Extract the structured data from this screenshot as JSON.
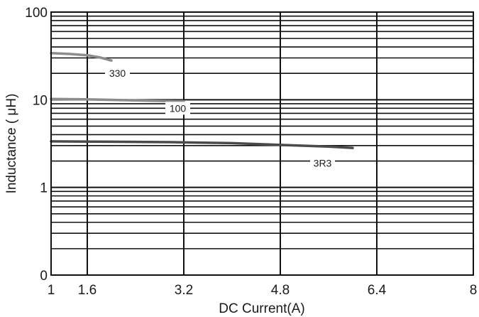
{
  "chart_data": {
    "type": "line",
    "title": "",
    "xlabel": "DC Current(A)",
    "ylabel": "Inductance ( μH)",
    "x_ticks": [
      1,
      1.6,
      3.2,
      4.8,
      6.4,
      8
    ],
    "y_ticks": [
      {
        "value": 100,
        "label": "100"
      },
      {
        "value": 10,
        "label": "10"
      },
      {
        "value": 1,
        "label": "1"
      },
      {
        "value": 0.1,
        "label": "0"
      }
    ],
    "xlim": [
      1,
      8
    ],
    "ylim": [
      0.1,
      100
    ],
    "y_scale": "log",
    "grid": true,
    "legend": "none",
    "series": [
      {
        "name": "330",
        "color": "#8c8c8c",
        "x": [
          1.0,
          1.3,
          1.6,
          1.8,
          2.0
        ],
        "y": [
          34,
          33.3,
          32.2,
          30.5,
          28
        ]
      },
      {
        "name": "100",
        "color": "#8c8c8c",
        "x": [
          1.0,
          1.6,
          2.2,
          2.8,
          3.2
        ],
        "y": [
          10.2,
          10.1,
          9.9,
          9.7,
          9.6
        ]
      },
      {
        "name": "3R3",
        "color": "#4a4a4a",
        "x": [
          1.0,
          2.0,
          3.0,
          4.0,
          4.8,
          5.6,
          6.0
        ],
        "y": [
          3.35,
          3.32,
          3.28,
          3.2,
          3.05,
          2.92,
          2.82
        ]
      }
    ],
    "annotations": [
      {
        "text": "330",
        "x": 2.1,
        "y": 20
      },
      {
        "text": "100",
        "x": 3.1,
        "y": 8
      },
      {
        "text": "3R3",
        "x": 5.5,
        "y": 1.9
      }
    ]
  }
}
